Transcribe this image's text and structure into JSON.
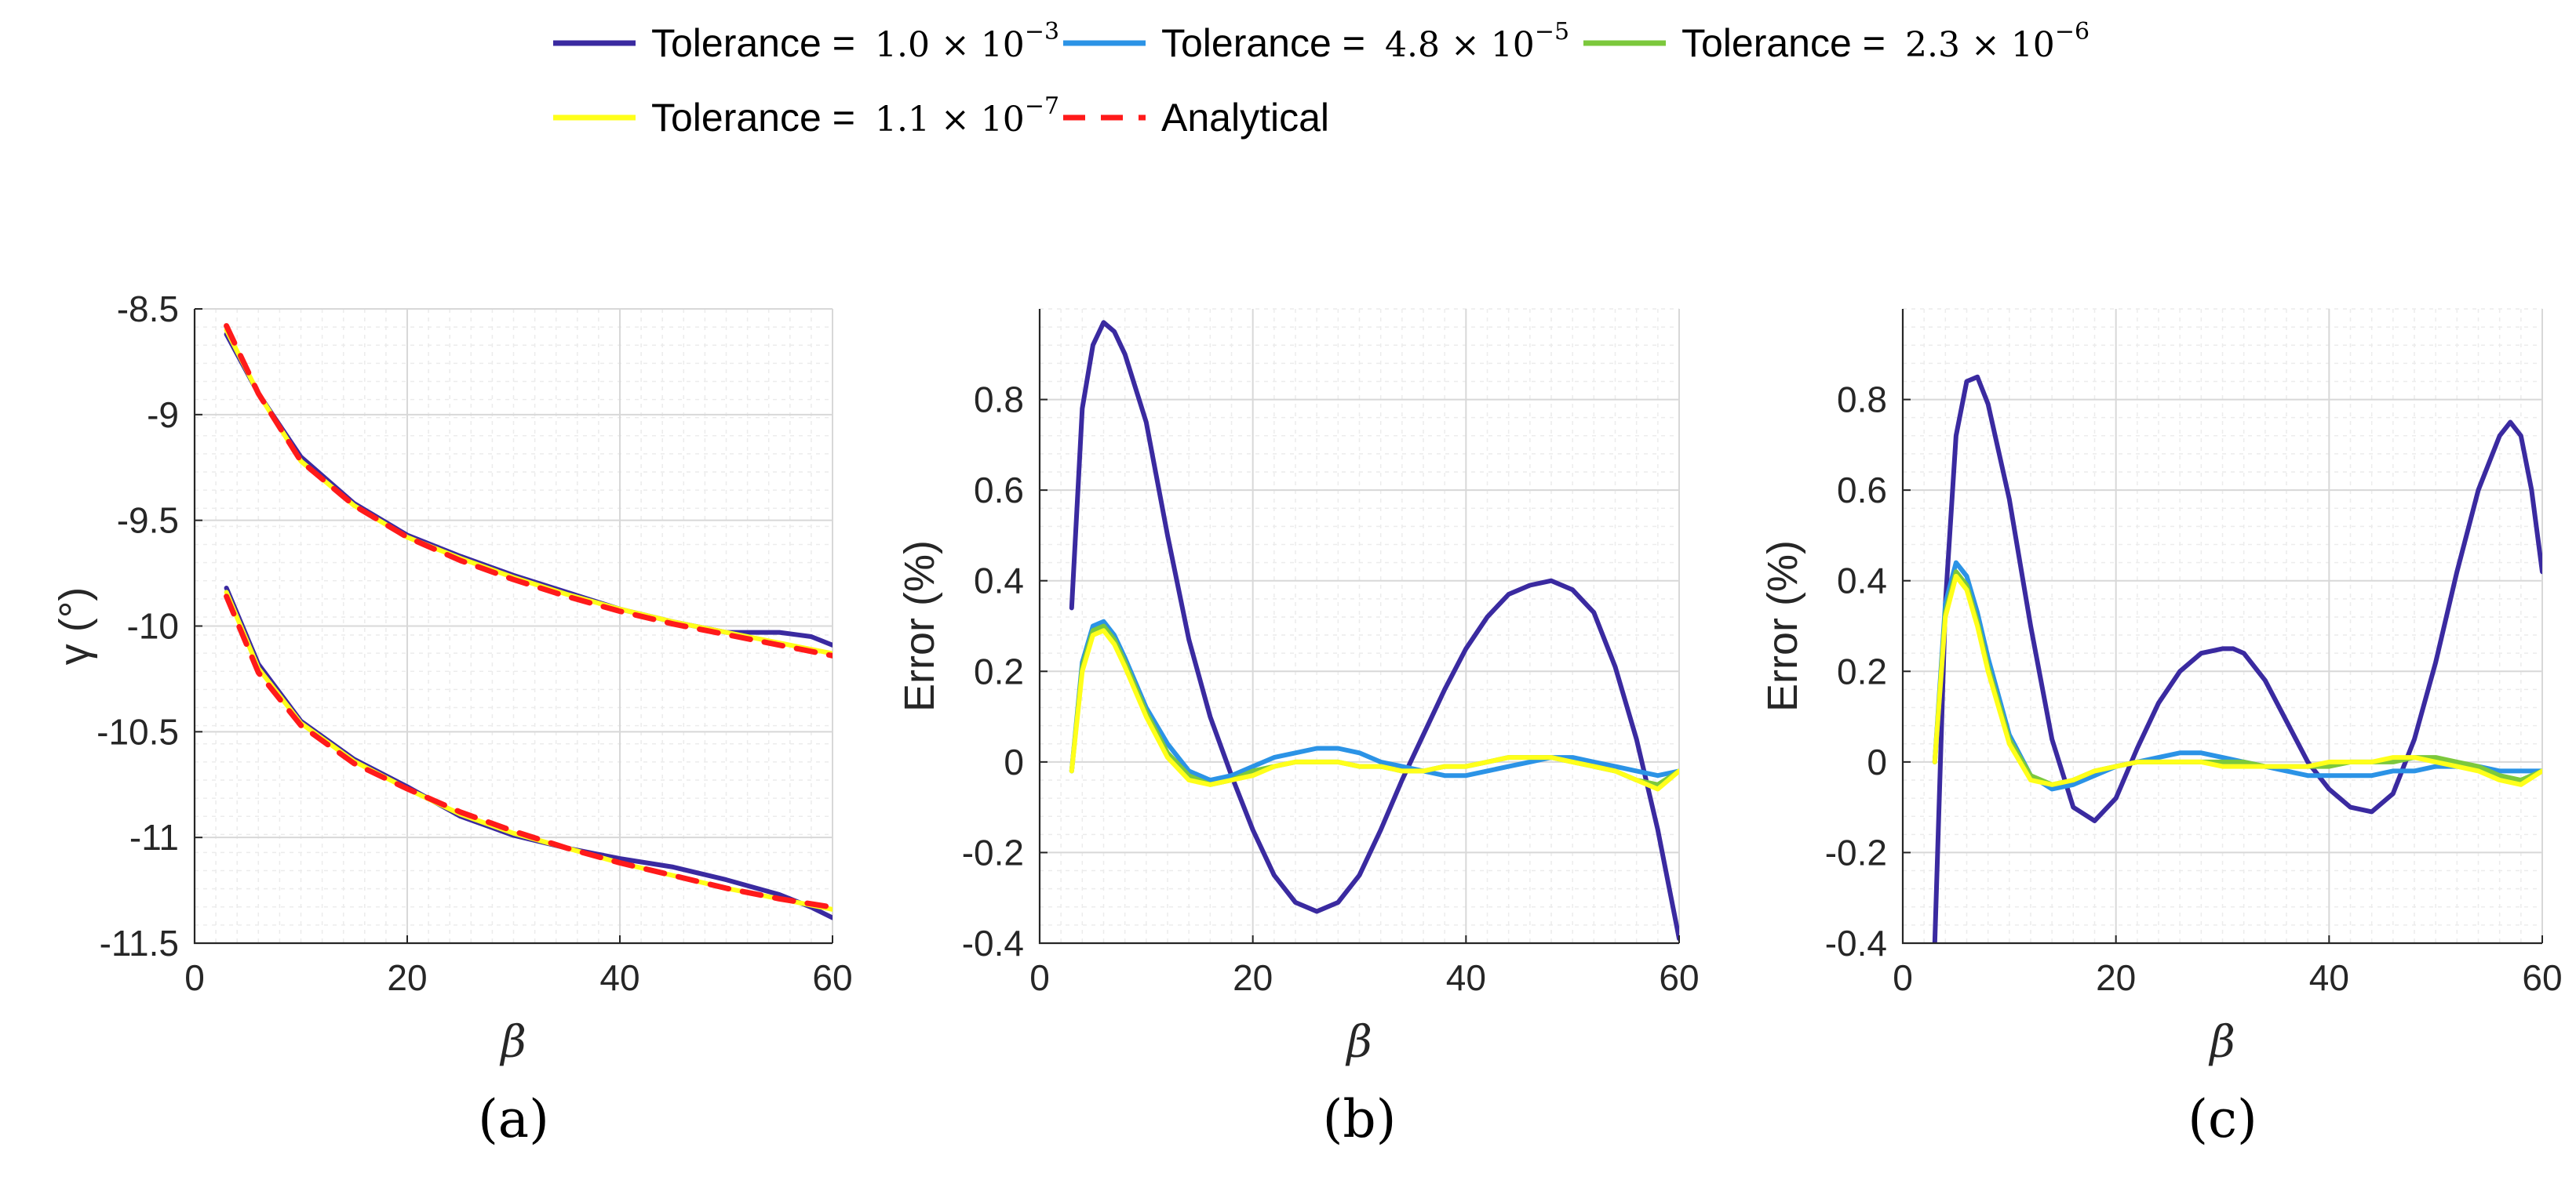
{
  "legend": [
    {
      "label": "Tolerance =",
      "math": "1.0 × 10",
      "sup": "−3",
      "color": "#3a2aa0",
      "dash": false
    },
    {
      "label": "Tolerance =",
      "math": "4.8 × 10",
      "sup": "−5",
      "color": "#2b93e6",
      "dash": false
    },
    {
      "label": "Tolerance =",
      "math": "2.3 × 10",
      "sup": "−6",
      "color": "#7cc83c",
      "dash": false
    },
    {
      "label": "Tolerance =",
      "math": "1.1 × 10",
      "sup": "−7",
      "color": "#ffff1a",
      "dash": false
    },
    {
      "label": "Analytical",
      "math": "",
      "sup": "",
      "color": "#ff1a1a",
      "dash": true
    }
  ],
  "chart_data": [
    {
      "type": "line",
      "panel_label": "(a)",
      "xlabel": "β",
      "ylabel": "γ (°)",
      "xlim": [
        0,
        60
      ],
      "ylim": [
        -11.5,
        -8.5
      ],
      "xticks": [
        0,
        20,
        40,
        60
      ],
      "yticks": [
        -11.5,
        -11,
        -10.5,
        -10,
        -9.5,
        -9,
        -8.5
      ],
      "ytick_labels": [
        "-11.5",
        "-11",
        "-10.5",
        "-10",
        "-9.5",
        "-9",
        "-8.5"
      ],
      "grid": true,
      "series": [
        {
          "name": "Tolerance =1.0 × 10^−3",
          "color": "#3a2aa0",
          "x": [
            3,
            6,
            10,
            15,
            20,
            25,
            30,
            35,
            40,
            45,
            50,
            55,
            58,
            60
          ],
          "y": [
            -8.62,
            -8.9,
            -9.2,
            -9.42,
            -9.57,
            -9.67,
            -9.76,
            -9.84,
            -9.92,
            -9.98,
            -10.03,
            -10.03,
            -10.05,
            -10.09
          ]
        },
        {
          "name": "Tolerance =1.0 × 10^−3",
          "color": "#3a2aa0",
          "x": [
            3,
            6,
            10,
            15,
            20,
            25,
            30,
            35,
            40,
            45,
            50,
            55,
            58,
            60
          ],
          "y": [
            -9.82,
            -10.18,
            -10.45,
            -10.63,
            -10.76,
            -10.9,
            -10.99,
            -11.05,
            -11.1,
            -11.14,
            -11.2,
            -11.27,
            -11.33,
            -11.38
          ]
        },
        {
          "name": "Tolerance =1.1 × 10^−7",
          "color": "#ffff1a",
          "x": [
            3,
            6,
            10,
            15,
            20,
            25,
            30,
            35,
            40,
            45,
            50,
            55,
            60
          ],
          "y": [
            -8.6,
            -8.9,
            -9.22,
            -9.43,
            -9.58,
            -9.68,
            -9.77,
            -9.85,
            -9.92,
            -9.98,
            -10.03,
            -10.08,
            -10.13
          ]
        },
        {
          "name": "Tolerance =1.1 × 10^−7",
          "color": "#ffff1a",
          "x": [
            3,
            6,
            10,
            15,
            20,
            25,
            30,
            35,
            40,
            45,
            50,
            55,
            60
          ],
          "y": [
            -9.84,
            -10.2,
            -10.46,
            -10.64,
            -10.77,
            -10.89,
            -10.98,
            -11.05,
            -11.12,
            -11.18,
            -11.24,
            -11.29,
            -11.34
          ]
        },
        {
          "name": "Analytical",
          "color": "#ff1a1a",
          "dash": true,
          "x": [
            3,
            6,
            10,
            15,
            20,
            25,
            30,
            35,
            40,
            45,
            50,
            55,
            60
          ],
          "y": [
            -8.58,
            -8.9,
            -9.22,
            -9.43,
            -9.58,
            -9.69,
            -9.78,
            -9.86,
            -9.93,
            -9.99,
            -10.04,
            -10.09,
            -10.14
          ]
        },
        {
          "name": "Analytical",
          "color": "#ff1a1a",
          "dash": true,
          "x": [
            3,
            6,
            10,
            15,
            20,
            25,
            30,
            35,
            40,
            45,
            50,
            55,
            60
          ],
          "y": [
            -9.86,
            -10.22,
            -10.47,
            -10.65,
            -10.77,
            -10.88,
            -10.97,
            -11.05,
            -11.12,
            -11.18,
            -11.24,
            -11.29,
            -11.33
          ]
        }
      ]
    },
    {
      "type": "line",
      "panel_label": "(b)",
      "xlabel": "β",
      "ylabel": "Error (%)",
      "xlim": [
        0,
        60
      ],
      "ylim": [
        -0.4,
        1.0
      ],
      "xticks": [
        0,
        20,
        40,
        60
      ],
      "yticks": [
        -0.4,
        -0.2,
        0,
        0.2,
        0.4,
        0.6,
        0.8
      ],
      "ytick_labels": [
        "-0.4",
        "-0.2",
        "0",
        "0.2",
        "0.4",
        "0.6",
        "0.8"
      ],
      "grid": true,
      "series": [
        {
          "name": "Tolerance =1.0 × 10^−3",
          "color": "#3a2aa0",
          "x": [
            3,
            4,
            5,
            6,
            7,
            8,
            10,
            12,
            14,
            16,
            18,
            20,
            22,
            24,
            26,
            28,
            30,
            32,
            34,
            36,
            38,
            40,
            42,
            44,
            46,
            48,
            50,
            52,
            54,
            56,
            58,
            60
          ],
          "y": [
            0.34,
            0.78,
            0.92,
            0.97,
            0.95,
            0.9,
            0.75,
            0.5,
            0.27,
            0.1,
            -0.03,
            -0.15,
            -0.25,
            -0.31,
            -0.33,
            -0.31,
            -0.25,
            -0.15,
            -0.04,
            0.06,
            0.16,
            0.25,
            0.32,
            0.37,
            0.39,
            0.4,
            0.38,
            0.33,
            0.21,
            0.05,
            -0.15,
            -0.39
          ]
        },
        {
          "name": "Tolerance =4.8 × 10^−5",
          "color": "#2b93e6",
          "x": [
            3,
            4,
            5,
            6,
            7,
            8,
            10,
            12,
            14,
            16,
            18,
            20,
            22,
            24,
            26,
            28,
            30,
            32,
            34,
            36,
            38,
            40,
            42,
            44,
            46,
            48,
            50,
            52,
            54,
            56,
            58,
            60
          ],
          "y": [
            -0.02,
            0.22,
            0.3,
            0.31,
            0.28,
            0.23,
            0.12,
            0.04,
            -0.02,
            -0.04,
            -0.03,
            -0.01,
            0.01,
            0.02,
            0.03,
            0.03,
            0.02,
            0.0,
            -0.01,
            -0.02,
            -0.03,
            -0.03,
            -0.02,
            -0.01,
            0.0,
            0.01,
            0.01,
            0.0,
            -0.01,
            -0.02,
            -0.03,
            -0.02
          ]
        },
        {
          "name": "Tolerance =2.3 × 10^−6",
          "color": "#7cc83c",
          "x": [
            3,
            4,
            5,
            6,
            7,
            8,
            10,
            12,
            14,
            16,
            18,
            20,
            22,
            24,
            26,
            28,
            30,
            32,
            34,
            36,
            38,
            40,
            42,
            44,
            46,
            48,
            50,
            52,
            54,
            56,
            58,
            60
          ],
          "y": [
            -0.02,
            0.21,
            0.29,
            0.3,
            0.27,
            0.22,
            0.11,
            0.02,
            -0.03,
            -0.05,
            -0.04,
            -0.02,
            -0.01,
            0.0,
            0.0,
            0.0,
            -0.01,
            -0.01,
            -0.02,
            -0.02,
            -0.01,
            -0.01,
            0.0,
            0.01,
            0.01,
            0.01,
            0.0,
            -0.01,
            -0.02,
            -0.04,
            -0.05,
            -0.02
          ]
        },
        {
          "name": "Tolerance =1.1 × 10^−7",
          "color": "#ffff1a",
          "x": [
            3,
            4,
            5,
            6,
            7,
            8,
            10,
            12,
            14,
            16,
            18,
            20,
            22,
            24,
            26,
            28,
            30,
            32,
            34,
            36,
            38,
            40,
            42,
            44,
            46,
            48,
            50,
            52,
            54,
            56,
            58,
            60
          ],
          "y": [
            -0.02,
            0.2,
            0.28,
            0.29,
            0.26,
            0.21,
            0.1,
            0.01,
            -0.04,
            -0.05,
            -0.04,
            -0.03,
            -0.01,
            0.0,
            0.0,
            0.0,
            -0.01,
            -0.01,
            -0.02,
            -0.02,
            -0.01,
            -0.01,
            0.0,
            0.01,
            0.01,
            0.01,
            0.0,
            -0.01,
            -0.02,
            -0.04,
            -0.06,
            -0.02
          ]
        }
      ]
    },
    {
      "type": "line",
      "panel_label": "(c)",
      "xlabel": "β",
      "ylabel": "Error (%)",
      "xlim": [
        0,
        60
      ],
      "ylim": [
        -0.4,
        1.0
      ],
      "xticks": [
        0,
        20,
        40,
        60
      ],
      "yticks": [
        -0.4,
        -0.2,
        0,
        0.2,
        0.4,
        0.6,
        0.8
      ],
      "ytick_labels": [
        "-0.4",
        "-0.2",
        "0",
        "0.2",
        "0.4",
        "0.6",
        "0.8"
      ],
      "grid": true,
      "series": [
        {
          "name": "Tolerance =1.0 × 10^−3",
          "color": "#3a2aa0",
          "x": [
            3,
            4,
            5,
            6,
            7,
            8,
            10,
            12,
            14,
            16,
            18,
            20,
            22,
            24,
            26,
            28,
            30,
            31,
            32,
            34,
            36,
            38,
            40,
            42,
            44,
            46,
            48,
            50,
            52,
            54,
            56,
            57,
            58,
            59,
            60
          ],
          "y": [
            -0.4,
            0.35,
            0.72,
            0.84,
            0.85,
            0.79,
            0.58,
            0.3,
            0.05,
            -0.1,
            -0.13,
            -0.08,
            0.03,
            0.13,
            0.2,
            0.24,
            0.25,
            0.25,
            0.24,
            0.18,
            0.09,
            0.0,
            -0.06,
            -0.1,
            -0.11,
            -0.07,
            0.05,
            0.22,
            0.42,
            0.6,
            0.72,
            0.75,
            0.72,
            0.6,
            0.42
          ]
        },
        {
          "name": "Tolerance =4.8 × 10^−5",
          "color": "#2b93e6",
          "x": [
            3,
            4,
            5,
            6,
            7,
            8,
            10,
            12,
            14,
            16,
            18,
            20,
            22,
            24,
            26,
            28,
            30,
            32,
            34,
            36,
            38,
            40,
            42,
            44,
            46,
            48,
            50,
            52,
            54,
            56,
            58,
            60
          ],
          "y": [
            0.0,
            0.35,
            0.44,
            0.41,
            0.33,
            0.23,
            0.06,
            -0.03,
            -0.06,
            -0.05,
            -0.03,
            -0.01,
            0.0,
            0.01,
            0.02,
            0.02,
            0.01,
            0.0,
            -0.01,
            -0.02,
            -0.03,
            -0.03,
            -0.03,
            -0.03,
            -0.02,
            -0.02,
            -0.01,
            -0.01,
            -0.01,
            -0.02,
            -0.02,
            -0.02
          ]
        },
        {
          "name": "Tolerance =2.3 × 10^−6",
          "color": "#7cc83c",
          "x": [
            3,
            4,
            5,
            6,
            7,
            8,
            10,
            12,
            14,
            16,
            18,
            20,
            22,
            24,
            26,
            28,
            30,
            32,
            34,
            36,
            38,
            40,
            42,
            44,
            46,
            48,
            50,
            52,
            54,
            56,
            58,
            60
          ],
          "y": [
            0.0,
            0.33,
            0.42,
            0.39,
            0.31,
            0.21,
            0.05,
            -0.03,
            -0.05,
            -0.04,
            -0.02,
            -0.01,
            0.0,
            0.0,
            0.0,
            0.0,
            0.0,
            0.0,
            -0.01,
            -0.01,
            -0.01,
            -0.01,
            0.0,
            0.0,
            0.0,
            0.01,
            0.01,
            0.0,
            -0.01,
            -0.03,
            -0.04,
            -0.02
          ]
        },
        {
          "name": "Tolerance =1.1 × 10^−7",
          "color": "#ffff1a",
          "x": [
            3,
            4,
            5,
            6,
            7,
            8,
            10,
            12,
            14,
            16,
            18,
            20,
            22,
            24,
            26,
            28,
            30,
            32,
            34,
            36,
            38,
            40,
            42,
            44,
            46,
            48,
            50,
            52,
            54,
            56,
            58,
            60
          ],
          "y": [
            0.0,
            0.32,
            0.41,
            0.38,
            0.3,
            0.2,
            0.04,
            -0.04,
            -0.05,
            -0.04,
            -0.02,
            -0.01,
            0.0,
            0.0,
            0.0,
            0.0,
            -0.01,
            -0.01,
            -0.01,
            -0.01,
            -0.01,
            0.0,
            0.0,
            0.0,
            0.01,
            0.01,
            0.0,
            -0.01,
            -0.02,
            -0.04,
            -0.05,
            -0.02
          ]
        }
      ]
    }
  ]
}
